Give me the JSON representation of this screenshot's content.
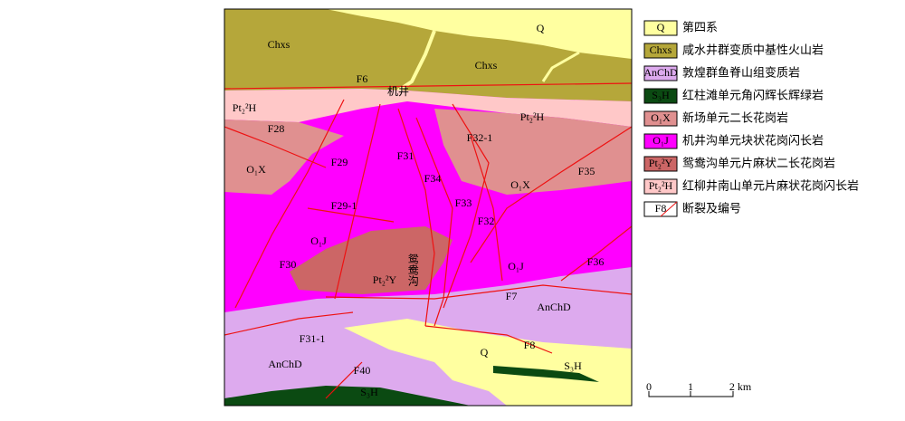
{
  "map": {
    "labels": [
      "Q",
      "Chxs",
      "Chxs",
      "F6",
      "机井",
      "Pt₂²H",
      "Pt₂²H",
      "F28",
      "F32-1",
      "O₁X",
      "F29",
      "F31",
      "F34",
      "F35",
      "O₁X",
      "F33",
      "F29-1",
      "F32",
      "O₁J",
      "F30",
      "鸳鸯沟",
      "Pt₂²Y",
      "O₁J",
      "F36",
      "F7",
      "AnChD",
      "F31-1",
      "F8",
      "Q",
      "S₃H",
      "AnChD",
      "F40",
      "S₃H"
    ],
    "legend": [
      {
        "symbol": "Q",
        "text": "第四系",
        "color": "#ffffa0"
      },
      {
        "symbol": "Chxs",
        "text": "咸水井群变质中基性火山岩",
        "color": "#b5a73a"
      },
      {
        "symbol": "AnChD",
        "text": "敦煌群鱼脊山组变质岩",
        "color": "#ddaaee"
      },
      {
        "symbol": "S₃H",
        "text": "红柱滩单元角闪辉长辉绿岩",
        "color": "#0b4a12"
      },
      {
        "symbol": "O₁X",
        "text": "新场单元二长花岗岩",
        "color": "#e09090"
      },
      {
        "symbol": "O₁J",
        "text": "机井沟单元块状花岗闪长岩",
        "color": "#ff00ff"
      },
      {
        "symbol": "Pt₂²Y",
        "text": "鸳鸯沟单元片麻状二长花岗岩",
        "color": "#cc6666"
      },
      {
        "symbol": "Pt₂²H",
        "text": "红柳井南山单元片麻状花岗闪长岩",
        "color": "#ffc8c8"
      },
      {
        "symbol": "F8",
        "text": "断裂及编号",
        "color": "#ffffff"
      }
    ],
    "scale": [
      "0",
      "1",
      "2 km"
    ]
  }
}
